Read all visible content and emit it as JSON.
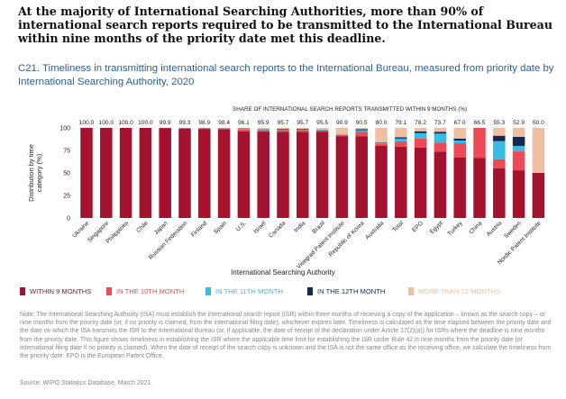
{
  "headline": "At the majority of International Searching Authorities, more than 90% of international search reports required to be transmitted to the International Bureau within nine months of the priority date met this deadline.",
  "subtitle": "C21. Timeliness in transmitting international search reports to the International Bureau, measured from priority date by International Searching Authority, 2020",
  "note": "Note: The International Searching Authority (ISA) must establish the international search report (ISR) within three months of receiving a copy of the application – known as the search copy – or nine months from the priority date (or, if no priority is claimed, from the international filing date), whichever expires later. Timeliness is calculated as the time elapsed between the priority date and the date on which the ISA transmits the ISR to the International Bureau (or, if applicable, the date of receipt of the declaration under Article 17(2)(a)) for ISRs where the deadline is nine months from the priority date. This figure shows timeliness in establishing the ISR where the applicable time limit for establishing the ISR under Rule 42 is nine months from the priority date (or international filing date if no priority is claimed). When the date of receipt of the search copy is unknown and the ISA is not the same office as the receiving office, we calculate the timeliness from the priority date. EPO is the European Patent Office.",
  "source": "Source: WIPO Statistics Database, March 2021.",
  "colors": {
    "within_9": "#a5122f",
    "month_10": "#ee4a55",
    "month_11": "#35bce2",
    "month_12": "#16284f",
    "more_12": "#f0bfa0"
  },
  "chart_data": {
    "type": "bar",
    "stacked": true,
    "share_label": "SHARE OF INTERNATIONAL SEARCH REPORTS TRANSMITTED WITHIN 9 MONTHS (%)",
    "xlabel": "International Searching Authority",
    "ylabel": "Distribution by time category (%)",
    "ylim": [
      0,
      100
    ],
    "yticks": [
      0,
      25,
      50,
      75,
      100
    ],
    "categories": [
      "Ukraine",
      "Singapore",
      "Philippines",
      "Chile",
      "Japan",
      "Russian Federation",
      "Finland",
      "Spain",
      "U.S.",
      "Israel",
      "Canada",
      "India",
      "Brazil",
      "Visegrad Patent Institute",
      "Republic of Korea",
      "Australia",
      "Total",
      "EPO",
      "Egypt",
      "Turkey",
      "China",
      "Austria",
      "Sweden",
      "Nordic Patent Institute"
    ],
    "share_labels": [
      "100.0",
      "100.0",
      "100.0",
      "100.0",
      "99.9",
      "99.3",
      "98.9",
      "98.4",
      "96.1",
      "95.9",
      "95.7",
      "95.7",
      "95.5",
      "90.9",
      "90.5",
      "80.0",
      "79.1",
      "78.2",
      "73.7",
      "67.0",
      "66.5",
      "55.3",
      "52.9",
      "50.0"
    ],
    "series": [
      {
        "name": "WITHIN 9 MONTHS",
        "values": [
          100.0,
          100.0,
          100.0,
          100.0,
          99.9,
          99.3,
          98.9,
          98.4,
          96.1,
          95.9,
          95.7,
          95.7,
          95.5,
          90.9,
          90.5,
          80.0,
          79.1,
          78.2,
          73.7,
          67.0,
          66.5,
          55.3,
          52.9,
          50.0
        ]
      },
      {
        "name": "IN THE 10TH MONTH",
        "values": [
          0,
          0,
          0,
          0,
          0.1,
          0.5,
          0.8,
          1.0,
          2.0,
          1.5,
          2.0,
          2.0,
          1.5,
          1.0,
          5.0,
          2.0,
          6.0,
          10.0,
          10.0,
          16.0,
          33.5,
          10.0,
          21.0,
          0
        ]
      },
      {
        "name": "IN THE 11TH MONTH",
        "values": [
          0,
          0,
          0,
          0,
          0,
          0.1,
          0.2,
          0.3,
          0.8,
          0.8,
          0.8,
          0.8,
          0.5,
          0.5,
          2.0,
          1.0,
          3.0,
          6.0,
          10.0,
          3.0,
          0,
          20.0,
          6.1,
          0
        ]
      },
      {
        "name": "IN THE 12TH MONTH",
        "values": [
          0,
          0,
          0,
          0,
          0,
          0.05,
          0.05,
          0.2,
          0.5,
          0.4,
          0.5,
          0.5,
          0.3,
          0.3,
          1.0,
          0.5,
          1.5,
          2.0,
          2.0,
          2.0,
          0,
          6.0,
          10.0,
          0
        ]
      },
      {
        "name": "MORE THAN 12 MONTHS",
        "values": [
          0,
          0,
          0,
          0,
          0,
          0.05,
          0.05,
          0.1,
          0.6,
          1.4,
          1.0,
          1.0,
          2.2,
          7.3,
          1.5,
          16.5,
          10.4,
          3.8,
          4.3,
          12.0,
          0,
          8.7,
          10.0,
          50.0
        ]
      }
    ]
  }
}
